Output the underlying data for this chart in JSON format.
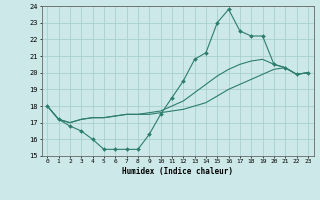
{
  "line1_x": [
    0,
    1,
    2,
    3,
    4,
    5,
    6,
    7,
    8,
    9,
    10,
    11,
    12,
    13,
    14,
    15,
    16,
    17,
    18,
    19,
    20,
    21,
    22,
    23
  ],
  "line1_y": [
    18,
    17.2,
    16.8,
    16.5,
    16.0,
    15.4,
    15.4,
    15.4,
    15.4,
    16.3,
    17.5,
    18.5,
    19.5,
    20.8,
    21.2,
    23.0,
    23.8,
    22.5,
    22.2,
    22.2,
    20.5,
    20.3,
    19.9,
    20.0
  ],
  "line2_x": [
    0,
    1,
    2,
    3,
    4,
    5,
    6,
    7,
    8,
    9,
    10,
    11,
    12,
    13,
    14,
    15,
    16,
    17,
    18,
    19,
    20,
    21,
    22,
    23
  ],
  "line2_y": [
    18,
    17.2,
    17.0,
    17.2,
    17.3,
    17.3,
    17.4,
    17.5,
    17.5,
    17.5,
    17.6,
    17.7,
    17.8,
    18.0,
    18.2,
    18.6,
    19.0,
    19.3,
    19.6,
    19.9,
    20.2,
    20.3,
    19.9,
    20.0
  ],
  "line3_x": [
    0,
    1,
    2,
    3,
    4,
    5,
    6,
    7,
    8,
    9,
    10,
    11,
    12,
    13,
    14,
    15,
    16,
    17,
    18,
    19,
    20,
    21,
    22,
    23
  ],
  "line3_y": [
    18,
    17.2,
    17.0,
    17.2,
    17.3,
    17.3,
    17.4,
    17.5,
    17.5,
    17.6,
    17.7,
    18.0,
    18.3,
    18.8,
    19.3,
    19.8,
    20.2,
    20.5,
    20.7,
    20.8,
    20.5,
    20.3,
    19.9,
    20.0
  ],
  "color": "#2d7d6e",
  "bg_color": "#cce8e8",
  "grid_color": "#a8d0d0",
  "xlabel": "Humidex (Indice chaleur)",
  "ylim": [
    15,
    24
  ],
  "xlim": [
    -0.5,
    23.5
  ],
  "yticks": [
    15,
    16,
    17,
    18,
    19,
    20,
    21,
    22,
    23,
    24
  ],
  "xticks": [
    0,
    1,
    2,
    3,
    4,
    5,
    6,
    7,
    8,
    9,
    10,
    11,
    12,
    13,
    14,
    15,
    16,
    17,
    18,
    19,
    20,
    21,
    22,
    23
  ]
}
